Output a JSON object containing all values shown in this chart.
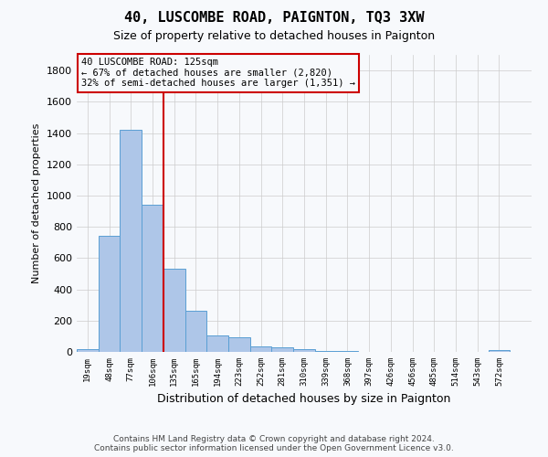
{
  "title": "40, LUSCOMBE ROAD, PAIGNTON, TQ3 3XW",
  "subtitle": "Size of property relative to detached houses in Paignton",
  "xlabel": "Distribution of detached houses by size in Paignton",
  "ylabel": "Number of detached properties",
  "bar_values": [
    20,
    740,
    1420,
    940,
    530,
    265,
    105,
    93,
    37,
    27,
    15,
    5,
    3,
    2,
    1,
    1,
    0,
    0,
    0,
    12
  ],
  "bar_labels": [
    "19sqm",
    "48sqm",
    "77sqm",
    "106sqm",
    "135sqm",
    "165sqm",
    "194sqm",
    "223sqm",
    "252sqm",
    "281sqm",
    "310sqm",
    "339sqm",
    "368sqm",
    "397sqm",
    "426sqm",
    "456sqm",
    "485sqm",
    "514sqm",
    "543sqm",
    "572sqm"
  ],
  "ylim": [
    0,
    1900
  ],
  "yticks": [
    0,
    200,
    400,
    600,
    800,
    1000,
    1200,
    1400,
    1600,
    1800
  ],
  "bar_color": "#aec6e8",
  "bar_edge_color": "#5a9fd4",
  "vline_x": 3.5,
  "annotation_text": "40 LUSCOMBE ROAD: 125sqm\n← 67% of detached houses are smaller (2,820)\n32% of semi-detached houses are larger (1,351) →",
  "annotation_box_color": "#cc0000",
  "footer": "Contains HM Land Registry data © Crown copyright and database right 2024.\nContains public sector information licensed under the Open Government Licence v3.0.",
  "bg_color": "#f7f9fc",
  "grid_color": "#cccccc"
}
